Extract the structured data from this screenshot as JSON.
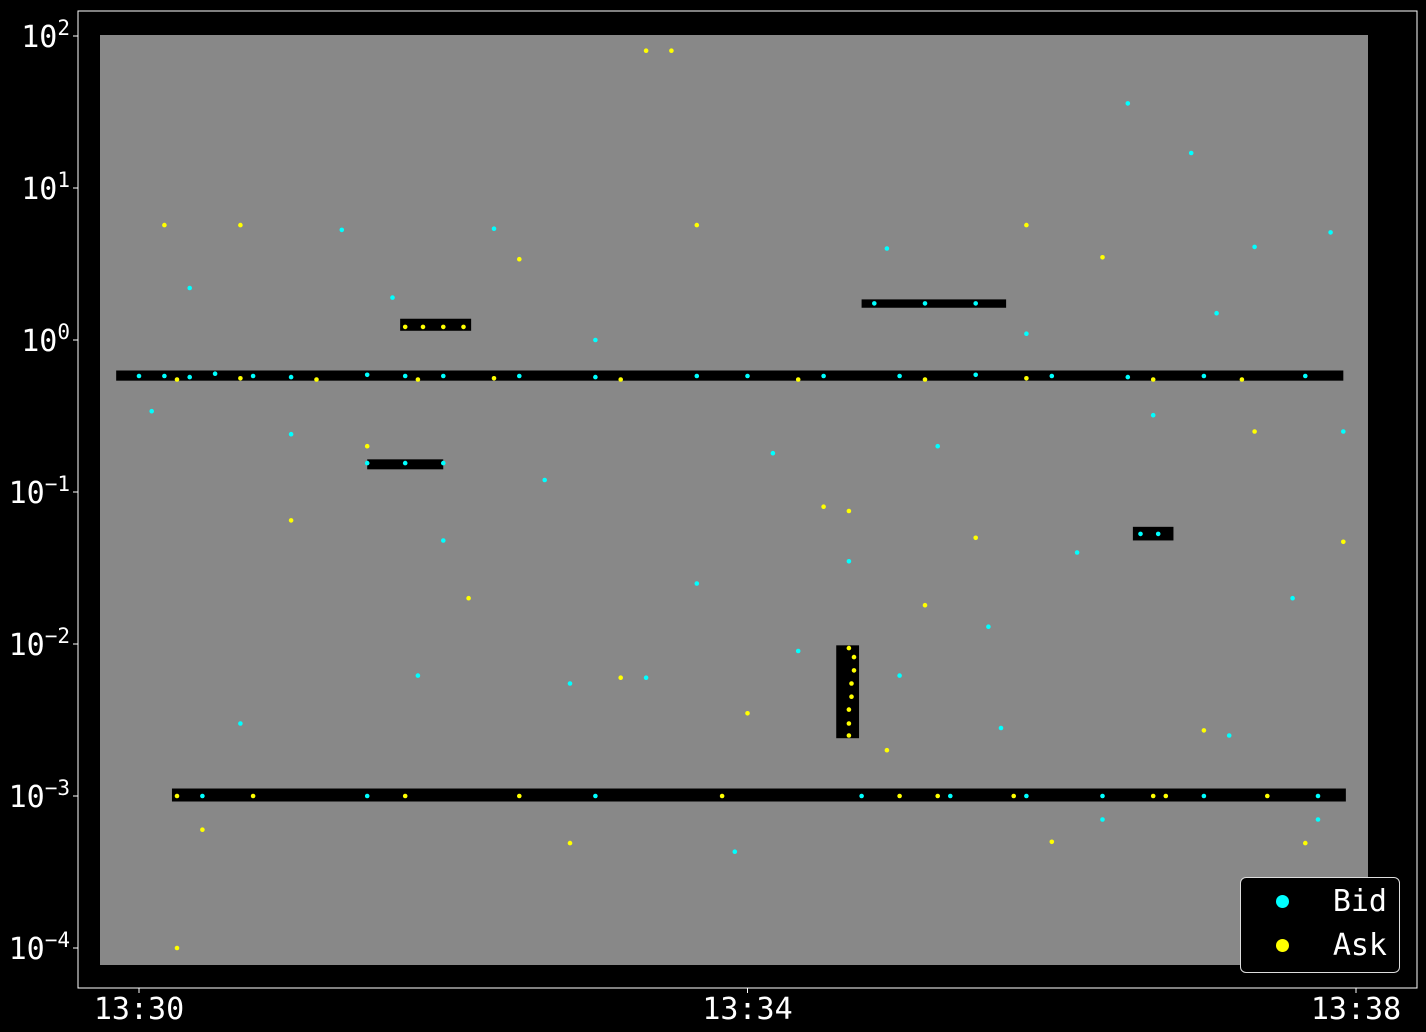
{
  "chart_data": {
    "type": "scatter",
    "colors": {
      "background": "#000000",
      "plot_area": "#888888",
      "band": "#000000",
      "Bid": "#00ffff",
      "Ask": "#ffff00",
      "axis_text": "#ffffff"
    },
    "x_axis": {
      "range": [
        "13:30",
        "13:38"
      ],
      "ticks": [
        "13:30",
        "13:34",
        "13:38"
      ]
    },
    "y_axis": {
      "scale": "log",
      "range": [
        0.0001,
        100
      ],
      "ticks": [
        {
          "base": "10",
          "exp": "2"
        },
        {
          "base": "10",
          "exp": "1"
        },
        {
          "base": "10",
          "exp": "0"
        },
        {
          "base": "10",
          "exp": "−1"
        },
        {
          "base": "10",
          "exp": "−2"
        },
        {
          "base": "10",
          "exp": "−3"
        },
        {
          "base": "10",
          "exp": "−4"
        }
      ]
    },
    "legend": {
      "position": "lower-right",
      "entries": [
        {
          "label": "Bid",
          "color": "#00ffff"
        },
        {
          "label": "Ask",
          "color": "#ffff00"
        }
      ]
    },
    "bands": [
      {
        "x0": "13:29:51",
        "x1": "13:37:55",
        "y0": 0.54,
        "y1": 0.63
      },
      {
        "x0": "13:30:13",
        "x1": "13:37:56",
        "y0": 0.00092,
        "y1": 0.00112
      },
      {
        "x0": "13:31:43",
        "x1": "13:32:11",
        "y0": 1.15,
        "y1": 1.38
      },
      {
        "x0": "13:31:30",
        "x1": "13:32:00",
        "y0": 0.141,
        "y1": 0.164
      },
      {
        "x0": "13:34:45",
        "x1": "13:35:42",
        "y0": 1.63,
        "y1": 1.85
      },
      {
        "x0": "13:34:35",
        "x1": "13:34:44",
        "y0": 0.0024,
        "y1": 0.0098
      },
      {
        "x0": "13:36:32",
        "x1": "13:36:48",
        "y0": 0.048,
        "y1": 0.059
      }
    ],
    "series": [
      {
        "name": "Bid",
        "points": [
          [
            "13:30:00",
            0.58
          ],
          [
            "13:30:10",
            0.58
          ],
          [
            "13:30:20",
            0.57
          ],
          [
            "13:30:30",
            0.6
          ],
          [
            "13:30:45",
            0.58
          ],
          [
            "13:31:00",
            0.57
          ],
          [
            "13:31:30",
            0.59
          ],
          [
            "13:31:45",
            0.58
          ],
          [
            "13:32:00",
            0.58
          ],
          [
            "13:32:30",
            0.58
          ],
          [
            "13:33:00",
            0.57
          ],
          [
            "13:33:40",
            0.58
          ],
          [
            "13:34:00",
            0.58
          ],
          [
            "13:34:30",
            0.58
          ],
          [
            "13:35:00",
            0.58
          ],
          [
            "13:35:30",
            0.59
          ],
          [
            "13:36:00",
            0.58
          ],
          [
            "13:36:30",
            0.57
          ],
          [
            "13:37:00",
            0.58
          ],
          [
            "13:37:40",
            0.58
          ],
          [
            "13:30:25",
            0.001
          ],
          [
            "13:31:30",
            0.001
          ],
          [
            "13:33:00",
            0.001
          ],
          [
            "13:34:45",
            0.001
          ],
          [
            "13:35:20",
            0.001
          ],
          [
            "13:35:50",
            0.001
          ],
          [
            "13:36:20",
            0.001
          ],
          [
            "13:37:00",
            0.001
          ],
          [
            "13:37:45",
            0.001
          ],
          [
            "13:31:30",
            0.155
          ],
          [
            "13:31:45",
            0.155
          ],
          [
            "13:32:00",
            0.155
          ],
          [
            "13:34:50",
            1.74
          ],
          [
            "13:35:10",
            1.74
          ],
          [
            "13:35:30",
            1.74
          ],
          [
            "13:36:35",
            0.053
          ],
          [
            "13:36:42",
            0.053
          ],
          [
            "13:30:20",
            2.2
          ],
          [
            "13:31:00",
            0.24
          ],
          [
            "13:31:20",
            5.3
          ],
          [
            "13:31:40",
            1.9
          ],
          [
            "13:32:00",
            0.048
          ],
          [
            "13:32:20",
            5.4
          ],
          [
            "13:32:40",
            0.12
          ],
          [
            "13:33:00",
            1.0
          ],
          [
            "13:33:20",
            0.006
          ],
          [
            "13:33:40",
            0.025
          ],
          [
            "13:33:55",
            0.00043
          ],
          [
            "13:34:10",
            0.18
          ],
          [
            "13:34:40",
            0.035
          ],
          [
            "13:34:55",
            4.0
          ],
          [
            "13:35:15",
            0.2
          ],
          [
            "13:35:35",
            0.013
          ],
          [
            "13:35:50",
            1.1
          ],
          [
            "13:36:10",
            0.04
          ],
          [
            "13:36:30",
            36
          ],
          [
            "13:36:40",
            0.32
          ],
          [
            "13:36:55",
            17
          ],
          [
            "13:37:05",
            1.5
          ],
          [
            "13:37:20",
            4.1
          ],
          [
            "13:37:35",
            0.02
          ],
          [
            "13:37:50",
            5.1
          ],
          [
            "13:37:55",
            0.25
          ],
          [
            "13:30:05",
            0.34
          ],
          [
            "13:30:40",
            0.003
          ],
          [
            "13:31:50",
            0.0062
          ],
          [
            "13:32:50",
            0.0055
          ],
          [
            "13:34:20",
            0.009
          ],
          [
            "13:35:00",
            0.0062
          ],
          [
            "13:35:40",
            0.0028
          ],
          [
            "13:36:20",
            0.0007
          ],
          [
            "13:37:10",
            0.0025
          ],
          [
            "13:37:45",
            0.0007
          ]
        ]
      },
      {
        "name": "Ask",
        "points": [
          [
            "13:30:15",
            0.55
          ],
          [
            "13:30:40",
            0.56
          ],
          [
            "13:31:10",
            0.55
          ],
          [
            "13:31:50",
            0.55
          ],
          [
            "13:32:20",
            0.56
          ],
          [
            "13:33:10",
            0.55
          ],
          [
            "13:34:20",
            0.55
          ],
          [
            "13:35:10",
            0.55
          ],
          [
            "13:35:50",
            0.56
          ],
          [
            "13:36:40",
            0.55
          ],
          [
            "13:37:15",
            0.55
          ],
          [
            "13:30:15",
            0.001
          ],
          [
            "13:30:45",
            0.001
          ],
          [
            "13:31:45",
            0.001
          ],
          [
            "13:32:30",
            0.001
          ],
          [
            "13:33:50",
            0.001
          ],
          [
            "13:35:00",
            0.001
          ],
          [
            "13:35:15",
            0.001
          ],
          [
            "13:35:45",
            0.001
          ],
          [
            "13:36:45",
            0.001
          ],
          [
            "13:37:25",
            0.001
          ],
          [
            "13:31:45",
            1.22
          ],
          [
            "13:31:52",
            1.22
          ],
          [
            "13:32:00",
            1.22
          ],
          [
            "13:32:08",
            1.22
          ],
          [
            "13:34:40",
            0.0025
          ],
          [
            "13:34:40",
            0.003
          ],
          [
            "13:34:40",
            0.0037
          ],
          [
            "13:34:41",
            0.0045
          ],
          [
            "13:34:41",
            0.0055
          ],
          [
            "13:34:42",
            0.0067
          ],
          [
            "13:34:42",
            0.0082
          ],
          [
            "13:34:40",
            0.0094
          ],
          [
            "13:33:20",
            80
          ],
          [
            "13:33:30",
            80
          ],
          [
            "13:30:10",
            5.7
          ],
          [
            "13:30:40",
            5.7
          ],
          [
            "13:30:15",
            0.0001
          ],
          [
            "13:30:25",
            0.0006
          ],
          [
            "13:31:00",
            0.065
          ],
          [
            "13:31:30",
            0.2
          ],
          [
            "13:32:10",
            0.02
          ],
          [
            "13:32:30",
            3.4
          ],
          [
            "13:32:50",
            0.00049
          ],
          [
            "13:33:10",
            0.006
          ],
          [
            "13:33:40",
            5.7
          ],
          [
            "13:34:00",
            0.0035
          ],
          [
            "13:34:30",
            0.08
          ],
          [
            "13:34:40",
            0.075
          ],
          [
            "13:34:55",
            0.002
          ],
          [
            "13:35:10",
            0.018
          ],
          [
            "13:35:30",
            0.05
          ],
          [
            "13:35:50",
            5.7
          ],
          [
            "13:36:00",
            0.0005
          ],
          [
            "13:36:20",
            3.5
          ],
          [
            "13:36:40",
            0.001
          ],
          [
            "13:37:00",
            0.0027
          ],
          [
            "13:37:20",
            0.25
          ],
          [
            "13:37:40",
            0.00049
          ],
          [
            "13:37:55",
            0.047
          ]
        ]
      }
    ]
  }
}
